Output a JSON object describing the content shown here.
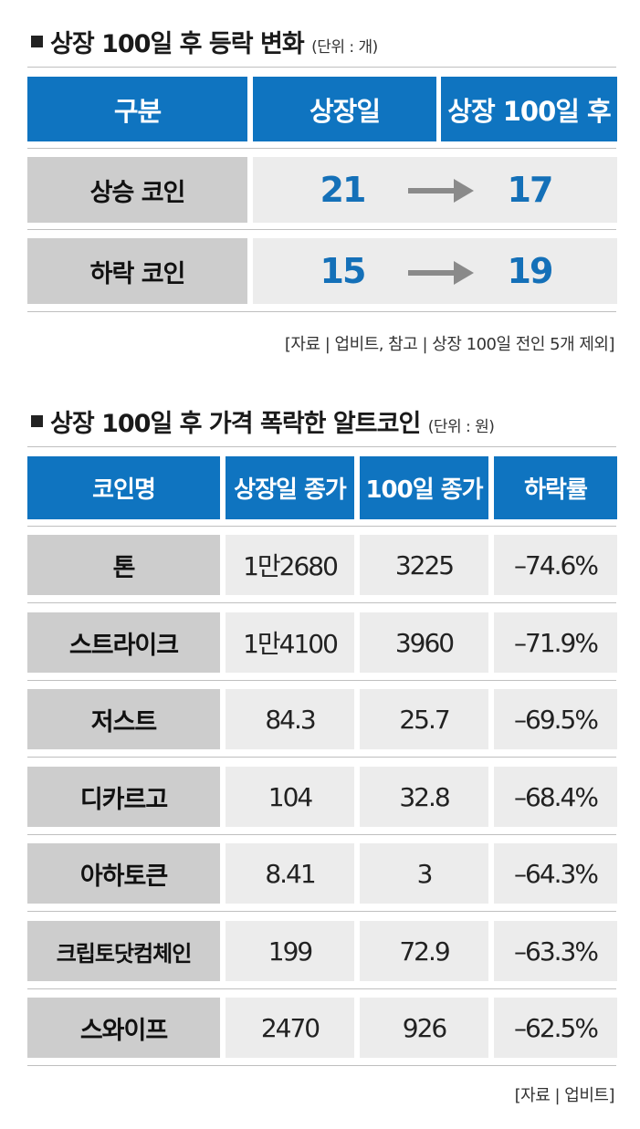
{
  "section1": {
    "title": "상장 100일 후 등락 변화",
    "unit": "(단위 : 개)",
    "headers": [
      "구분",
      "상장일",
      "상장 100일 후"
    ],
    "rows": [
      {
        "label": "상승 코인",
        "listing": "21",
        "after100": "17"
      },
      {
        "label": "하락 코인",
        "listing": "15",
        "after100": "19"
      }
    ],
    "source": "[자료 | 업비트, 참고 | 상장 100일 전인 5개 제외]"
  },
  "section2": {
    "title": "상장 100일 후 가격 폭락한 알트코인",
    "unit": "(단위 : 원)",
    "headers": [
      "코인명",
      "상장일 종가",
      "100일 종가",
      "하락률"
    ],
    "rows": [
      {
        "name": "톤",
        "listing_close": "1만2680",
        "day100_close": "3225",
        "decline": "–74.6%"
      },
      {
        "name": "스트라이크",
        "listing_close": "1만4100",
        "day100_close": "3960",
        "decline": "–71.9%"
      },
      {
        "name": "저스트",
        "listing_close": "84.3",
        "day100_close": "25.7",
        "decline": "–69.5%"
      },
      {
        "name": "디카르고",
        "listing_close": "104",
        "day100_close": "32.8",
        "decline": "–68.4%"
      },
      {
        "name": "아하토큰",
        "listing_close": "8.41",
        "day100_close": "3",
        "decline": "–64.3%"
      },
      {
        "name": "크립토닷컴체인",
        "listing_close": "199",
        "day100_close": "72.9",
        "decline": "–63.3%"
      },
      {
        "name": "스와이프",
        "listing_close": "2470",
        "day100_close": "926",
        "decline": "–62.5%"
      }
    ],
    "source": "[자료 | 업비트]"
  },
  "colors": {
    "header_blue": "#0f74c0",
    "value_blue": "#1470b8",
    "label_gray": "#cdcdcd",
    "value_gray": "#ececec",
    "arrow_gray": "#8a8a8a"
  },
  "icons": {
    "arrow": "right-arrow-icon",
    "bullet": "black-square-icon"
  }
}
